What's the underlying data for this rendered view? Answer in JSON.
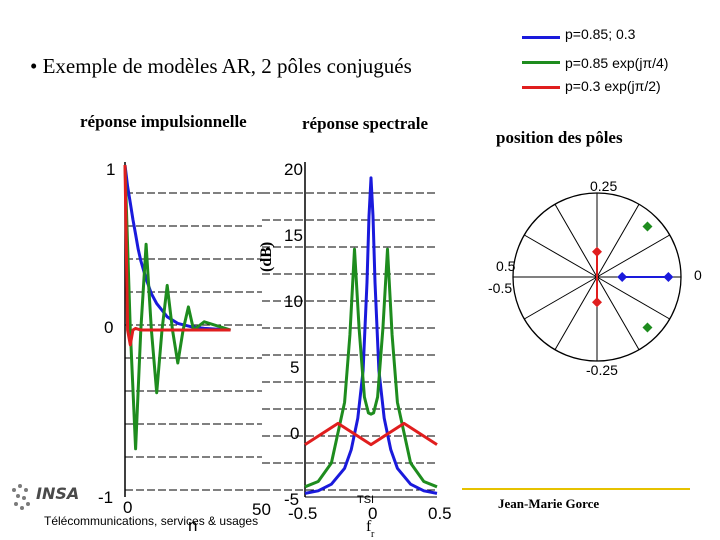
{
  "slide": {
    "title": "• Exemple de modèles AR, 2 pôles conjugués",
    "caption_impulse": "réponse impulsionnelle",
    "caption_spectral": "réponse spectrale",
    "caption_poles": "position des pôles",
    "footer": "Télécommunications, services & usages",
    "tsi": "TSI",
    "author": "Jean-Marie Gorce",
    "logo_text": "INSA"
  },
  "legend": [
    {
      "label": "p=0.85; 0.3",
      "color": "#1a1adc"
    },
    {
      "label": "p=0.85 exp(jπ/4)",
      "color": "#1e8c1e"
    },
    {
      "label": "p=0.3 exp(jπ/2)",
      "color": "#e01e1e"
    }
  ],
  "impulse": {
    "y_top": "1",
    "y_mid": "0",
    "y_bottom": "-1",
    "x_left": "0",
    "x_right": "50",
    "x_label": "n"
  },
  "spectral": {
    "ylabel": "(dB)",
    "y_ticks": [
      "20",
      "15",
      "10",
      "5",
      "0",
      "-5"
    ],
    "x_left": "-0.5",
    "x_mid": "0",
    "x_right": "0.5",
    "x_label": "f",
    "x_label_sub": "r"
  },
  "poles": {
    "top": "0.25",
    "right": "0",
    "bottom": "-0.25",
    "left_pos": "0.5",
    "left_neg": "-0.5"
  },
  "chart_data": [
    {
      "type": "line",
      "title": "réponse impulsionnelle",
      "xlabel": "n",
      "ylabel": "",
      "xlim": [
        0,
        50
      ],
      "ylim": [
        -1,
        1
      ],
      "series": [
        {
          "name": "p=0.85; 0.3",
          "color": "#1a1adc",
          "x": [
            0,
            1,
            2,
            3,
            4,
            5,
            6,
            8,
            10,
            12,
            14,
            16,
            20,
            25,
            30,
            40
          ],
          "values": [
            1.0,
            0.87,
            0.77,
            0.67,
            0.58,
            0.49,
            0.42,
            0.31,
            0.22,
            0.16,
            0.12,
            0.08,
            0.04,
            0.02,
            0.01,
            0.0
          ]
        },
        {
          "name": "p=0.85 exp(jπ/4)",
          "color": "#1e8c1e",
          "x": [
            0,
            2,
            4,
            6,
            8,
            10,
            12,
            14,
            16,
            18,
            20,
            22,
            24,
            26,
            30,
            40
          ],
          "values": [
            1.0,
            0.0,
            -0.72,
            0.0,
            0.52,
            0.0,
            -0.38,
            0.0,
            0.27,
            0.0,
            -0.2,
            0.0,
            0.14,
            0.0,
            0.05,
            0.0
          ]
        },
        {
          "name": "p=0.3 exp(jπ/2)",
          "color": "#e01e1e",
          "x": [
            0,
            1,
            2,
            3,
            4,
            6,
            10,
            20,
            30,
            40
          ],
          "values": [
            1.0,
            0.0,
            -0.09,
            0.0,
            0.01,
            0.0,
            0.0,
            0.0,
            0.0,
            0.0
          ]
        }
      ]
    },
    {
      "type": "line",
      "title": "réponse spectrale",
      "xlabel": "f",
      "ylabel": "(dB)",
      "xlim": [
        -0.5,
        0.5
      ],
      "ylim": [
        -5,
        20
      ],
      "series": [
        {
          "name": "p=0.85; 0.3",
          "color": "#1a1adc",
          "x": [
            -0.5,
            -0.4,
            -0.3,
            -0.2,
            -0.15,
            -0.1,
            -0.06,
            -0.03,
            -0.015,
            0,
            0.015,
            0.03,
            0.06,
            0.1,
            0.15,
            0.2,
            0.3,
            0.4,
            0.5
          ],
          "values": [
            -4.5,
            -4.3,
            -3.8,
            -2.6,
            -1.2,
            1.2,
            4.8,
            11.5,
            16.5,
            19.4,
            16.5,
            11.5,
            4.8,
            1.2,
            -1.2,
            -2.6,
            -3.8,
            -4.3,
            -4.5
          ]
        },
        {
          "name": "p=0.85 exp(jπ/4)",
          "color": "#1e8c1e",
          "x": [
            -0.5,
            -0.4,
            -0.3,
            -0.2,
            -0.16,
            -0.125,
            -0.09,
            -0.05,
            -0.02,
            0,
            0.02,
            0.05,
            0.09,
            0.125,
            0.16,
            0.2,
            0.3,
            0.4,
            0.5
          ],
          "values": [
            -4.0,
            -3.6,
            -2.2,
            2.4,
            7.5,
            14.0,
            8.0,
            2.8,
            1.6,
            1.5,
            1.6,
            2.8,
            8.0,
            14.0,
            7.5,
            2.4,
            -2.2,
            -3.6,
            -4.0
          ]
        },
        {
          "name": "p=0.3 exp(jπ/2)",
          "color": "#e01e1e",
          "x": [
            -0.5,
            -0.375,
            -0.25,
            -0.125,
            0,
            0.125,
            0.25,
            0.375,
            0.5
          ],
          "values": [
            -0.8,
            0.0,
            0.8,
            0.0,
            -0.8,
            0.0,
            0.8,
            0.0,
            -0.8
          ]
        }
      ]
    },
    {
      "type": "scatter",
      "title": "position des pôles",
      "xlabel": "",
      "ylabel": "",
      "xlim": [
        -1,
        1
      ],
      "ylim": [
        -1,
        1
      ],
      "series": [
        {
          "name": "p=0.85; 0.3",
          "color": "#1a1adc",
          "x": [
            0.85,
            0.3
          ],
          "values": [
            0,
            0
          ]
        },
        {
          "name": "p=0.85 exp(jπ/4)",
          "color": "#1e8c1e",
          "x": [
            0.601,
            0.601
          ],
          "values": [
            0.601,
            -0.601
          ]
        },
        {
          "name": "p=0.3 exp(jπ/2)",
          "color": "#e01e1e",
          "x": [
            0,
            0
          ],
          "values": [
            0.3,
            -0.3
          ]
        }
      ]
    }
  ]
}
